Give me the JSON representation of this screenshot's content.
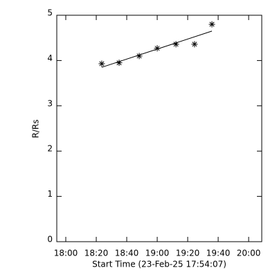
{
  "chart_data": {
    "type": "scatter",
    "x_label": "Start Time (23-Feb-25 17:54:07)",
    "y_label": "R/Rs",
    "xlim": [
      -5.9,
      128.6
    ],
    "ylim": [
      0,
      5
    ],
    "xticks": [
      {
        "value": 0,
        "label": "18:00"
      },
      {
        "value": 20,
        "label": "18:20"
      },
      {
        "value": 40,
        "label": "18:40"
      },
      {
        "value": 60,
        "label": "19:00"
      },
      {
        "value": 80,
        "label": "19:20"
      },
      {
        "value": 100,
        "label": "19:40"
      },
      {
        "value": 120,
        "label": "20:00"
      }
    ],
    "yticks": [
      0,
      1,
      2,
      3,
      4,
      5
    ],
    "marker": "asterisk",
    "color": "#000000",
    "points": {
      "x": [
        23.6,
        35.0,
        48.2,
        60.0,
        72.3,
        84.5,
        95.9
      ],
      "y": [
        3.93,
        3.95,
        4.1,
        4.27,
        4.36,
        4.36,
        4.8
      ]
    },
    "fit": {
      "x": [
        23.6,
        95.9
      ],
      "y": [
        3.85,
        4.65
      ]
    }
  }
}
